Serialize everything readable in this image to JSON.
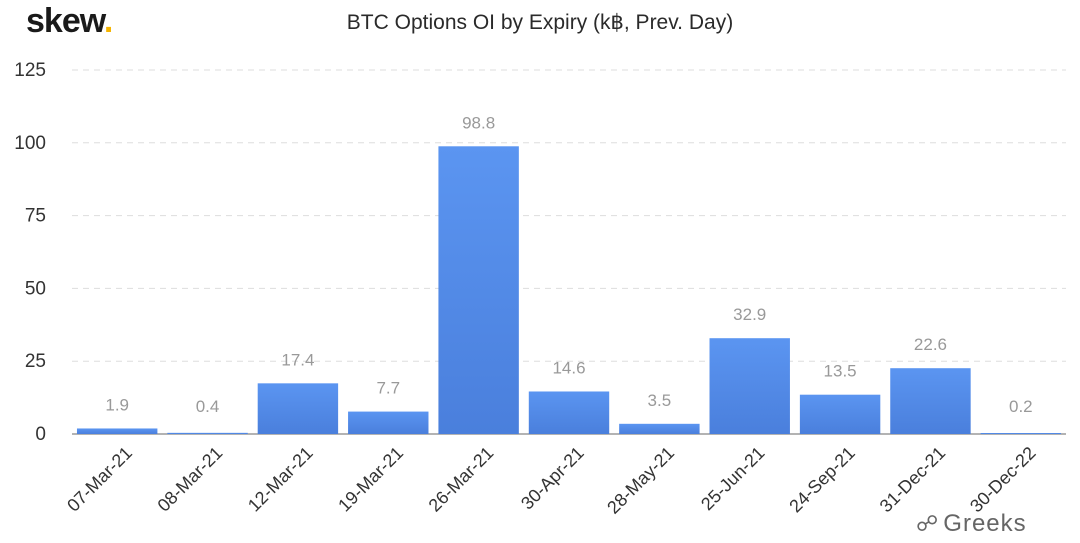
{
  "header": {
    "logo_text": "skew",
    "logo_dot": ".",
    "watermark": "Greeks",
    "watermark_icon": "wechat-icon"
  },
  "colors": {
    "bar_top": "#5b95f1",
    "bar_bottom": "#4a7fdc",
    "grid": "#dddddd",
    "logo_dot": "#f5b400"
  },
  "chart_data": {
    "type": "bar",
    "title": "BTC Options OI by Expiry (k฿, Prev. Day)",
    "xlabel": "",
    "ylabel": "",
    "categories": [
      "07-Mar-21",
      "08-Mar-21",
      "12-Mar-21",
      "19-Mar-21",
      "26-Mar-21",
      "30-Apr-21",
      "28-May-21",
      "25-Jun-21",
      "24-Sep-21",
      "31-Dec-21",
      "30-Dec-22"
    ],
    "values": [
      1.9,
      0.4,
      17.4,
      7.7,
      98.8,
      14.6,
      3.5,
      32.9,
      13.5,
      22.6,
      0.2
    ],
    "value_labels": [
      "1.9",
      "0.4",
      "17.4",
      "7.7",
      "98.8",
      "14.6",
      "3.5",
      "32.9",
      "13.5",
      "22.6",
      "0.2"
    ],
    "ylim": [
      0,
      125
    ],
    "yticks": [
      0,
      25,
      50,
      75,
      100,
      125
    ],
    "grid": true,
    "legend": "none"
  }
}
